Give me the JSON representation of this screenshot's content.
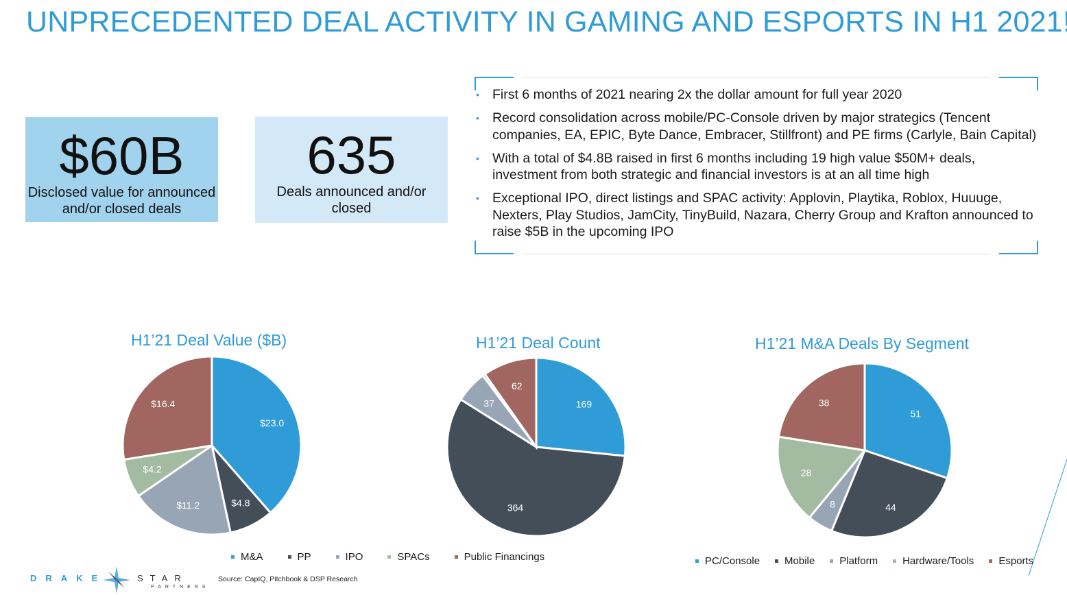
{
  "title": "UNPRECEDENTED DEAL ACTIVITY IN GAMING AND ESPORTS IN H1 2021!",
  "kpis": [
    {
      "value": "$60B",
      "label": "Disclosed value for announced and/or closed deals"
    },
    {
      "value": "635",
      "label": "Deals announced and/or closed"
    }
  ],
  "bullets": [
    "First 6 months of 2021 nearing 2x the dollar amount for full year 2020",
    "Record consolidation across mobile/PC-Console driven by major strategics (Tencent companies, EA, EPIC, Byte Dance, Embracer, Stillfront) and PE firms (Carlyle, Bain Capital)",
    "With a total of $4.8B raised in first 6 months including 19 high value $50M+ deals, investment from both strategic and financial investors is at an all time high",
    "Exceptional IPO, direct listings and SPAC activity: Applovin, Playtika, Roblox, Huuuge, Nexters, Play Studios, JamCity, TinyBuild, Nazara, Cherry Group and Krafton announced to raise $5B in the upcoming IPO"
  ],
  "chart_data": [
    {
      "type": "pie",
      "title": "H1’21 Deal Value ($B)",
      "categories": [
        "M&A",
        "PP",
        "IPO",
        "SPACs",
        "Public Financings"
      ],
      "values": [
        23.0,
        4.8,
        11.2,
        4.2,
        16.4
      ],
      "labels": [
        "$23.0",
        "$4.8",
        "$11.2",
        "$4.2",
        "$16.4"
      ],
      "colors": [
        "#2f9bd7",
        "#444e59",
        "#97a5b5",
        "#a3bba0",
        "#a0665f"
      ]
    },
    {
      "type": "pie",
      "title": "H1’21 Deal Count",
      "categories": [
        "M&A",
        "PP",
        "IPO",
        "SPACs",
        "Public Financings"
      ],
      "values": [
        169,
        364,
        37,
        3,
        62
      ],
      "labels": [
        "169",
        "364",
        "37",
        "",
        "62"
      ],
      "colors": [
        "#2f9bd7",
        "#444e59",
        "#97a5b5",
        "#a3bba0",
        "#a0665f"
      ]
    },
    {
      "type": "pie",
      "title": "H1’21 M&A Deals By Segment",
      "categories": [
        "PC/Console",
        "Mobile",
        "Platform",
        "Hardware/Tools",
        "Esports"
      ],
      "values": [
        51,
        44,
        8,
        28,
        38
      ],
      "labels": [
        "51",
        "44",
        "8",
        "28",
        "38"
      ],
      "colors": [
        "#2f9bd7",
        "#444e59",
        "#97a5b5",
        "#a3bba0",
        "#a0665f"
      ]
    }
  ],
  "legend1": [
    "M&A",
    "PP",
    "IPO",
    "SPACs",
    "Public Financings"
  ],
  "legend2": [
    "PC/Console",
    "Mobile",
    "Platform",
    "Hardware/Tools",
    "Esports"
  ],
  "logo": {
    "drake": "DRAKE",
    "star": "STAR",
    "partners": "PARTNERS"
  },
  "source": "Source: CapIQ, Pitchbook & DSP Research"
}
